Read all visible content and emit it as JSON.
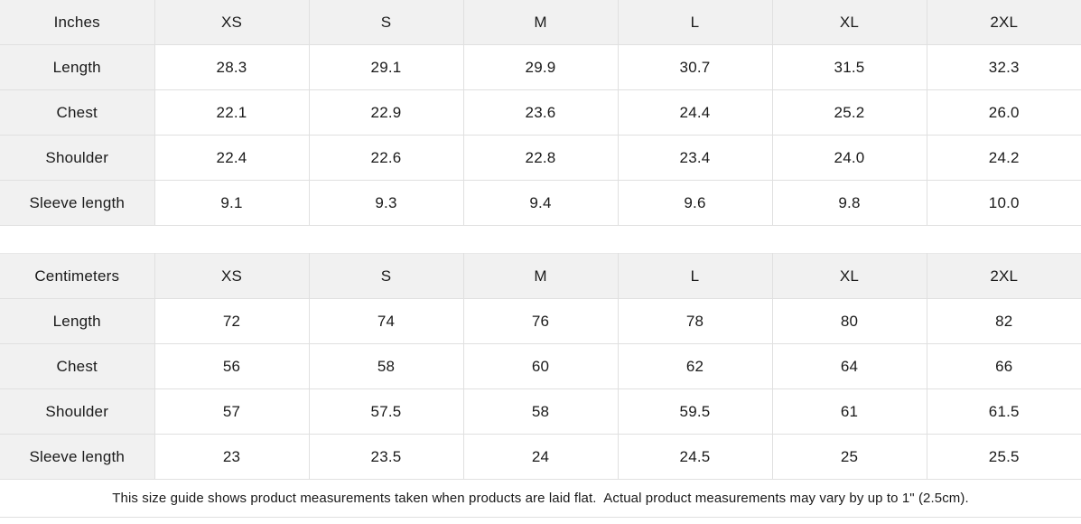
{
  "colors": {
    "header_bg": "#f1f1f1",
    "border": "#e0e0e0",
    "text": "#1a1a1a",
    "background": "#ffffff"
  },
  "chart_data": [
    {
      "type": "table",
      "unit": "Inches",
      "sizes": [
        "XS",
        "S",
        "M",
        "L",
        "XL",
        "2XL"
      ],
      "rows": [
        {
          "label": "Length",
          "values": [
            "28.3",
            "29.1",
            "29.9",
            "30.7",
            "31.5",
            "32.3"
          ]
        },
        {
          "label": "Chest",
          "values": [
            "22.1",
            "22.9",
            "23.6",
            "24.4",
            "25.2",
            "26.0"
          ]
        },
        {
          "label": "Shoulder",
          "values": [
            "22.4",
            "22.6",
            "22.8",
            "23.4",
            "24.0",
            "24.2"
          ]
        },
        {
          "label": "Sleeve length",
          "values": [
            "9.1",
            "9.3",
            "9.4",
            "9.6",
            "9.8",
            "10.0"
          ]
        }
      ]
    },
    {
      "type": "table",
      "unit": "Centimeters",
      "sizes": [
        "XS",
        "S",
        "M",
        "L",
        "XL",
        "2XL"
      ],
      "rows": [
        {
          "label": "Length",
          "values": [
            "72",
            "74",
            "76",
            "78",
            "80",
            "82"
          ]
        },
        {
          "label": "Chest",
          "values": [
            "56",
            "58",
            "60",
            "62",
            "64",
            "66"
          ]
        },
        {
          "label": "Shoulder",
          "values": [
            "57",
            "57.5",
            "58",
            "59.5",
            "61",
            "61.5"
          ]
        },
        {
          "label": "Sleeve length",
          "values": [
            "23",
            "23.5",
            "24",
            "24.5",
            "25",
            "25.5"
          ]
        }
      ]
    }
  ],
  "note": "This size guide shows product measurements taken when products are laid flat.  Actual product measurements may vary by up to 1\" (2.5cm)."
}
